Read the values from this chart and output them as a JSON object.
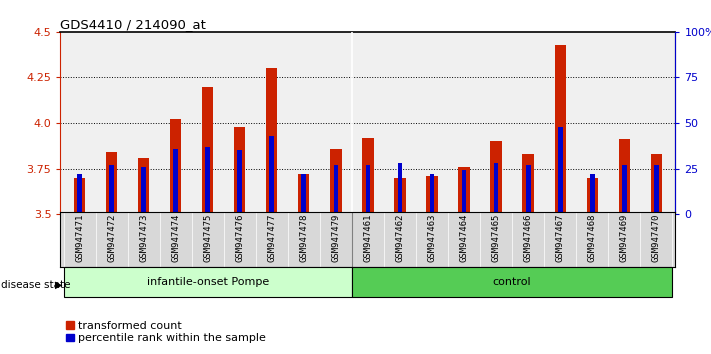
{
  "title": "GDS4410 / 214090_at",
  "samples": [
    "GSM947471",
    "GSM947472",
    "GSM947473",
    "GSM947474",
    "GSM947475",
    "GSM947476",
    "GSM947477",
    "GSM947478",
    "GSM947479",
    "GSM947461",
    "GSM947462",
    "GSM947463",
    "GSM947464",
    "GSM947465",
    "GSM947466",
    "GSM947467",
    "GSM947468",
    "GSM947469",
    "GSM947470"
  ],
  "red_values": [
    3.7,
    3.84,
    3.81,
    4.02,
    4.2,
    3.98,
    4.3,
    3.72,
    3.86,
    3.92,
    3.7,
    3.71,
    3.76,
    3.9,
    3.83,
    4.43,
    3.7,
    3.91,
    3.83
  ],
  "blue_values": [
    3.72,
    3.77,
    3.76,
    3.86,
    3.87,
    3.85,
    3.93,
    3.72,
    3.77,
    3.77,
    3.78,
    3.72,
    3.74,
    3.78,
    3.77,
    3.98,
    3.72,
    3.77,
    3.77
  ],
  "red_color": "#cc2200",
  "blue_color": "#0000cc",
  "ymin": 3.5,
  "ymax": 4.5,
  "yticks_left": [
    3.5,
    3.75,
    4.0,
    4.25,
    4.5
  ],
  "yticks_right_labels": [
    "0",
    "25",
    "50",
    "75",
    "100%"
  ],
  "group1_label": "infantile-onset Pompe",
  "group2_label": "control",
  "disease_state_label": "disease state",
  "legend1": "transformed count",
  "legend2": "percentile rank within the sample",
  "bar_width": 0.35,
  "blue_bar_width": 0.15,
  "group1_color": "#ccffcc",
  "group2_color": "#55cc55",
  "separator_index": 9,
  "tick_label_fontsize": 6.5,
  "axis_tick_color_left": "#cc2200",
  "axis_tick_color_right": "#0000cc",
  "plot_bg_color": "#f0f0f0",
  "sample_bg_color": "#d8d8d8"
}
